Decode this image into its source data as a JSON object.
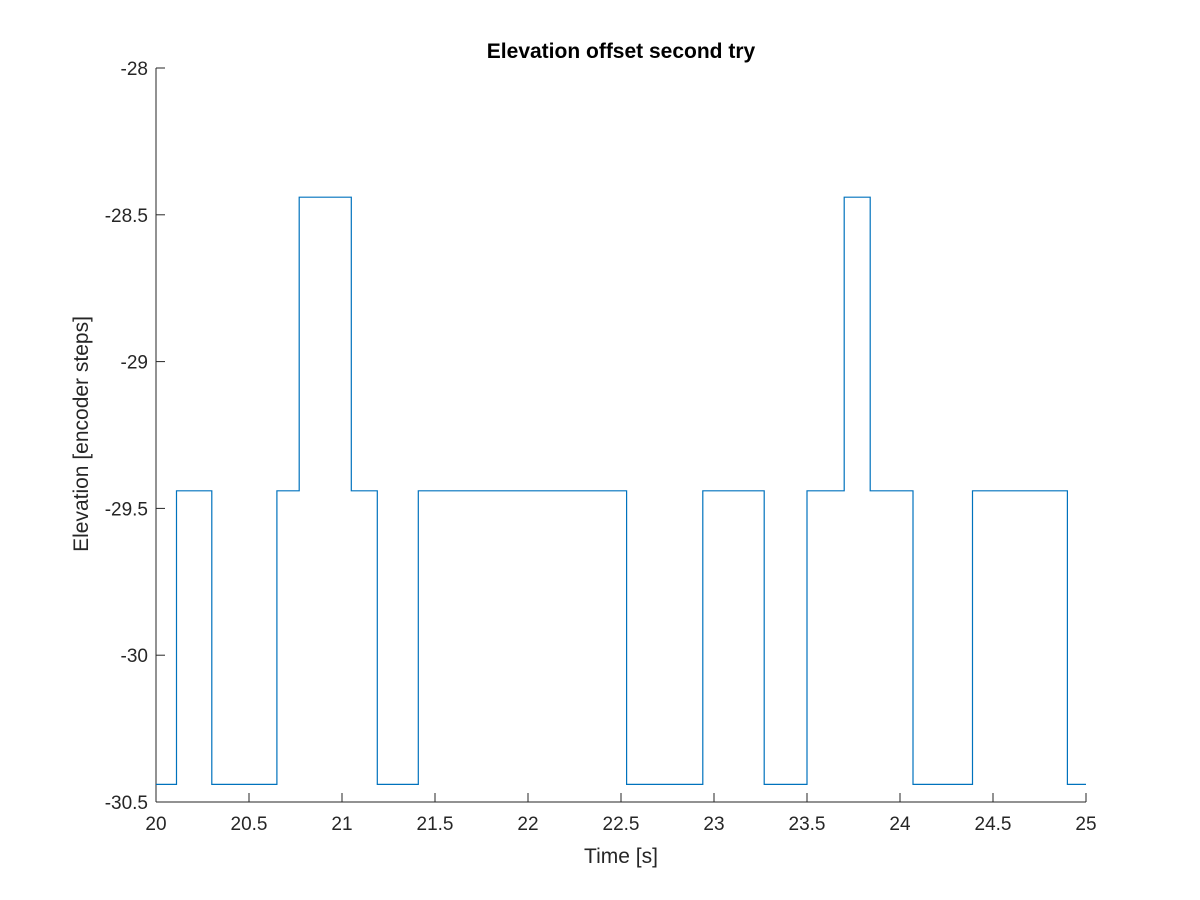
{
  "chart_data": {
    "type": "line",
    "line_style": "step",
    "title": "Elevation offset second try",
    "xlabel": "Time [s]",
    "ylabel": "Elevation [encoder steps]",
    "xlim": [
      20,
      25
    ],
    "ylim": [
      -30.5,
      -28
    ],
    "x_ticks": [
      20,
      20.5,
      21,
      21.5,
      22,
      22.5,
      23,
      23.5,
      24,
      24.5,
      25
    ],
    "x_tick_labels": [
      "20",
      "20.5",
      "21",
      "21.5",
      "22",
      "22.5",
      "23",
      "23.5",
      "24",
      "24.5",
      "25"
    ],
    "y_ticks": [
      -30.5,
      -30,
      -29.5,
      -29,
      -28.5,
      -28
    ],
    "y_tick_labels": [
      "-30.5",
      "-30",
      "-29.5",
      "-29",
      "-28.5",
      "-28"
    ],
    "grid": false,
    "line_color": "#0072BD",
    "series": [
      {
        "x": [
          20.0,
          20.11,
          20.3,
          20.65,
          20.77,
          21.05,
          21.19,
          21.41,
          22.53,
          22.94,
          23.27,
          23.5,
          23.7,
          23.84,
          24.07,
          24.39,
          24.9,
          25.0
        ],
        "y": [
          -30.44,
          -29.44,
          -30.44,
          -29.44,
          -28.44,
          -29.44,
          -30.44,
          -29.44,
          -30.44,
          -29.44,
          -30.44,
          -29.44,
          -28.44,
          -29.44,
          -30.44,
          -29.44,
          -30.44,
          -30.44
        ]
      }
    ]
  }
}
